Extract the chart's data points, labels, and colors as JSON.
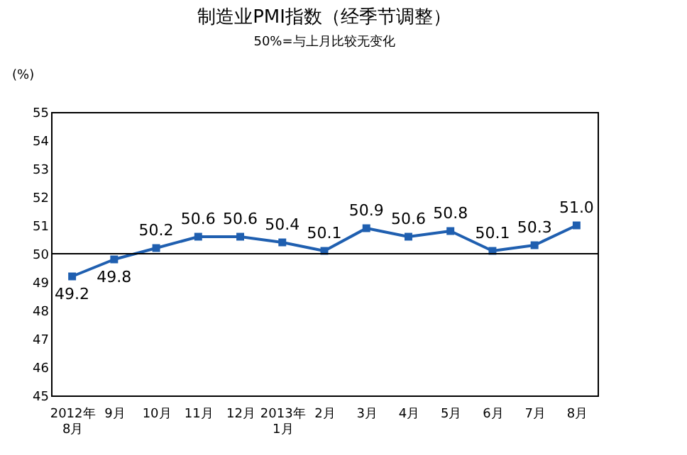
{
  "chart_data": {
    "type": "line",
    "title": "制造业PMI指数（经季节调整）",
    "subtitle": "50%=与上月比较无变化",
    "ylabel": "(%)",
    "categories": [
      "2012年\n8月",
      "9月",
      "10月",
      "11月",
      "12月",
      "2013年\n1月",
      "2月",
      "3月",
      "4月",
      "5月",
      "6月",
      "7月",
      "8月"
    ],
    "series": [
      {
        "color": "#1f5fb0",
        "values": [
          49.2,
          49.8,
          50.2,
          50.6,
          50.6,
          50.4,
          50.1,
          50.9,
          50.6,
          50.8,
          50.1,
          50.3,
          51.0
        ],
        "value_labels": [
          "49.2",
          "49.8",
          "50.2",
          "50.6",
          "50.6",
          "50.4",
          "50.1",
          "50.9",
          "50.6",
          "50.8",
          "50.1",
          "50.3",
          "51.0"
        ]
      }
    ],
    "ylim": [
      45,
      55
    ],
    "yticks": [
      45,
      46,
      47,
      48,
      49,
      50,
      51,
      52,
      53,
      54,
      55
    ],
    "ref_lines": [
      {
        "axis": "y",
        "value": 50,
        "color": "#000000"
      }
    ],
    "data_labels": true,
    "marker": "square",
    "grid": false,
    "legend": false
  }
}
